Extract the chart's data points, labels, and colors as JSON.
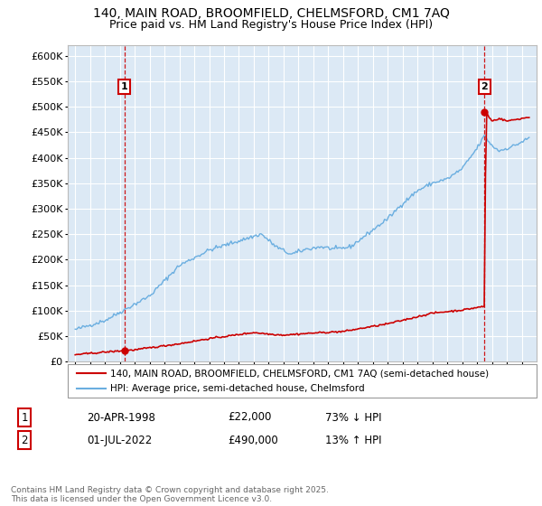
{
  "title": "140, MAIN ROAD, BROOMFIELD, CHELMSFORD, CM1 7AQ",
  "subtitle": "Price paid vs. HM Land Registry's House Price Index (HPI)",
  "ylim": [
    0,
    620000
  ],
  "yticks": [
    0,
    50000,
    100000,
    150000,
    200000,
    250000,
    300000,
    350000,
    400000,
    450000,
    500000,
    550000,
    600000
  ],
  "ytick_labels": [
    "£0",
    "£50K",
    "£100K",
    "£150K",
    "£200K",
    "£250K",
    "£300K",
    "£350K",
    "£400K",
    "£450K",
    "£500K",
    "£550K",
    "£600K"
  ],
  "sale1_date": 1998.3,
  "sale1_price": 22000,
  "sale1_label": "1",
  "sale2_date": 2022.5,
  "sale2_price": 490000,
  "sale2_label": "2",
  "hpi_color": "#6aaee0",
  "sale_color": "#cc0000",
  "background_color": "#ffffff",
  "plot_bg_color": "#dce9f5",
  "grid_color": "#ffffff",
  "legend_entry1": "140, MAIN ROAD, BROOMFIELD, CHELMSFORD, CM1 7AQ (semi-detached house)",
  "legend_entry2": "HPI: Average price, semi-detached house, Chelmsford",
  "table_row1": [
    "1",
    "20-APR-1998",
    "£22,000",
    "73% ↓ HPI"
  ],
  "table_row2": [
    "2",
    "01-JUL-2022",
    "£490,000",
    "13% ↑ HPI"
  ],
  "footer": "Contains HM Land Registry data © Crown copyright and database right 2025.\nThis data is licensed under the Open Government Licence v3.0.",
  "title_fontsize": 10,
  "subtitle_fontsize": 9,
  "tick_fontsize": 8,
  "xstart": 1995,
  "xend": 2025.5
}
